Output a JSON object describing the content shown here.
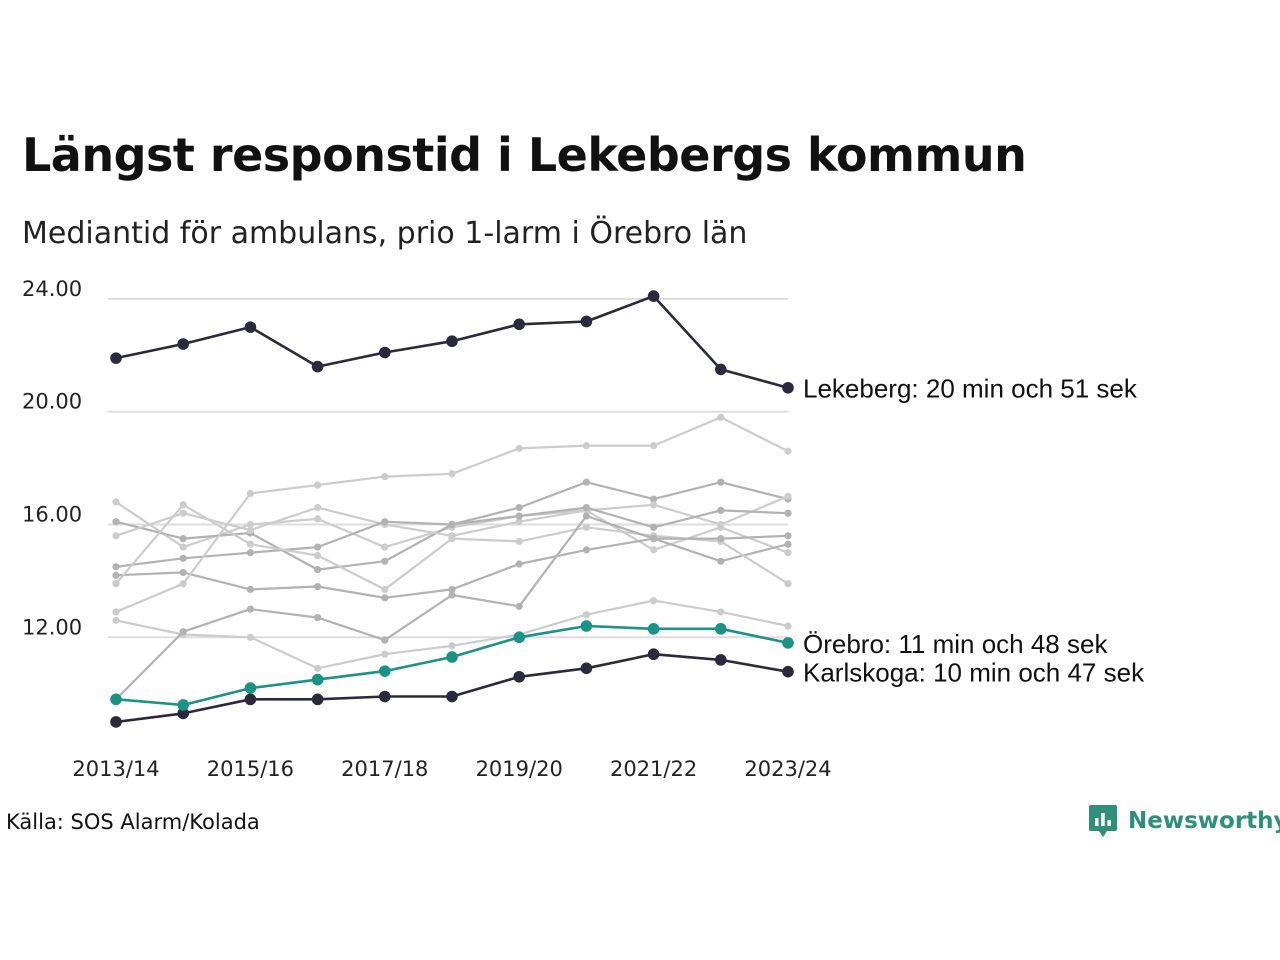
{
  "title": "Längst responstid i Lekebergs kommun",
  "subtitle": "Mediantid för ambulans, prio 1-larm i Örebro län",
  "source": "Källa: SOS Alarm/Kolada",
  "brand": {
    "name": "Newsworthy",
    "icon": "newsworthy-logo-icon"
  },
  "colors": {
    "highlight_dark": "#2b2a3d",
    "highlight_teal": "#1a9385",
    "context_light": "#cccccc",
    "context_mid": "#b2b2b2",
    "grid": "#dddddd"
  },
  "chart_data": {
    "type": "line",
    "x": [
      "2013/14",
      "2014/15",
      "2015/16",
      "2016/17",
      "2017/18",
      "2018/19",
      "2019/20",
      "2020/21",
      "2021/22",
      "2022/23",
      "2023/24"
    ],
    "x_tick_labels": [
      "2013/14",
      "2015/16",
      "2017/18",
      "2019/20",
      "2021/22",
      "2023/24"
    ],
    "y_tick_labels": [
      "12.00",
      "16.00",
      "20.00",
      "24.00"
    ],
    "y_ticks": [
      12,
      16,
      20,
      24
    ],
    "ylim": [
      8.5,
      24.6
    ],
    "grid": true,
    "legend": "none",
    "series": [
      {
        "values": [
          16.8,
          15.2,
          16.0,
          16.2,
          15.2,
          15.9,
          16.3,
          16.5,
          15.1,
          15.9,
          15.0
        ],
        "tone": "light",
        "labeled": false
      },
      {
        "values": [
          16.1,
          15.5,
          15.7,
          14.4,
          14.7,
          16.0,
          16.6,
          17.5,
          16.9,
          17.5,
          16.9
        ],
        "tone": "mid",
        "labeled": false
      },
      {
        "values": [
          15.6,
          16.4,
          15.8,
          16.6,
          16.0,
          15.6,
          16.1,
          16.5,
          16.7,
          16.0,
          17.0
        ],
        "tone": "light",
        "labeled": false
      },
      {
        "values": [
          14.5,
          14.8,
          15.0,
          15.2,
          16.1,
          16.0,
          16.3,
          16.6,
          15.9,
          16.5,
          16.4
        ],
        "tone": "mid",
        "labeled": false
      },
      {
        "values": [
          14.2,
          14.3,
          13.7,
          13.8,
          13.4,
          13.7,
          14.6,
          15.1,
          15.5,
          14.7,
          15.3
        ],
        "tone": "mid",
        "labeled": false
      },
      {
        "values": [
          13.9,
          16.7,
          15.3,
          14.9,
          13.7,
          15.5,
          15.4,
          15.9,
          15.6,
          15.4,
          13.9
        ],
        "tone": "light",
        "labeled": false
      },
      {
        "values": [
          12.9,
          13.9,
          17.1,
          17.4,
          17.7,
          17.8,
          18.7,
          18.8,
          18.8,
          19.8,
          18.6
        ],
        "tone": "light",
        "labeled": false
      },
      {
        "values": [
          12.6,
          12.1,
          12.0,
          10.9,
          11.4,
          11.7,
          12.1,
          12.8,
          13.3,
          12.9,
          12.4
        ],
        "tone": "light",
        "labeled": false
      },
      {
        "values": [
          9.8,
          12.2,
          13.0,
          12.7,
          11.9,
          13.5,
          13.1,
          16.3,
          15.5,
          15.5,
          15.6
        ],
        "tone": "mid",
        "labeled": false
      },
      {
        "name": "Lekeberg",
        "label": "Lekeberg: 20 min och 51 sek",
        "values": [
          21.9,
          22.4,
          23.0,
          21.6,
          22.1,
          22.5,
          23.1,
          23.2,
          24.1,
          21.5,
          20.85
        ],
        "tone": "dark",
        "labeled": true
      },
      {
        "name": "Karlskoga",
        "label": "Karlskoga: 10 min och 47 sek",
        "values": [
          9.0,
          9.3,
          9.8,
          9.8,
          9.9,
          9.9,
          10.6,
          10.9,
          11.4,
          11.2,
          10.78
        ],
        "tone": "dark",
        "labeled": true
      },
      {
        "name": "Örebro",
        "label": "Örebro: 11 min och 48 sek",
        "values": [
          9.8,
          9.6,
          10.2,
          10.5,
          10.8,
          11.3,
          12.0,
          12.4,
          12.3,
          12.3,
          11.8
        ],
        "tone": "teal",
        "labeled": true
      }
    ]
  }
}
